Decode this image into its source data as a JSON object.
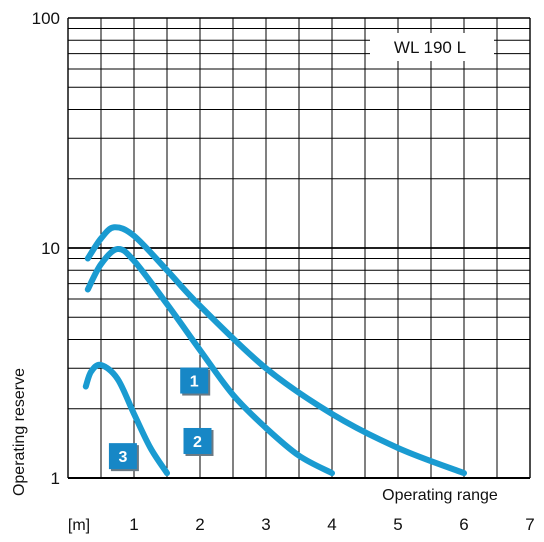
{
  "chart_data": {
    "type": "line",
    "title": "WL 190 L",
    "xlabel": "Operating range",
    "ylabel": "Operating reserve",
    "x_unit": "[m]",
    "xlim": [
      0,
      7
    ],
    "ylim": [
      1,
      100
    ],
    "y_scale": "log",
    "grid": true,
    "x_ticks": [
      "1",
      "2",
      "3",
      "4",
      "5",
      "6",
      "7"
    ],
    "y_ticks": [
      "1",
      "10",
      "100"
    ],
    "line_color": "#1a9bd1",
    "badge_color": "#1787c6",
    "series": [
      {
        "name": "1",
        "x": [
          0.3,
          0.5,
          0.7,
          1.0,
          1.5,
          2.0,
          3.0,
          4.0,
          5.0,
          6.0
        ],
        "y": [
          9.0,
          11.0,
          12.3,
          11.3,
          8.0,
          5.6,
          3.0,
          1.9,
          1.35,
          1.05
        ]
      },
      {
        "name": "2",
        "x": [
          0.3,
          0.5,
          0.75,
          1.0,
          1.5,
          2.0,
          2.5,
          3.0,
          3.5,
          4.0
        ],
        "y": [
          6.6,
          8.5,
          9.9,
          8.8,
          5.7,
          3.6,
          2.3,
          1.65,
          1.25,
          1.05
        ]
      },
      {
        "name": "3",
        "x": [
          0.27,
          0.35,
          0.5,
          0.75,
          1.0,
          1.25,
          1.5
        ],
        "y": [
          2.5,
          2.9,
          3.1,
          2.7,
          1.9,
          1.35,
          1.05
        ]
      }
    ]
  }
}
